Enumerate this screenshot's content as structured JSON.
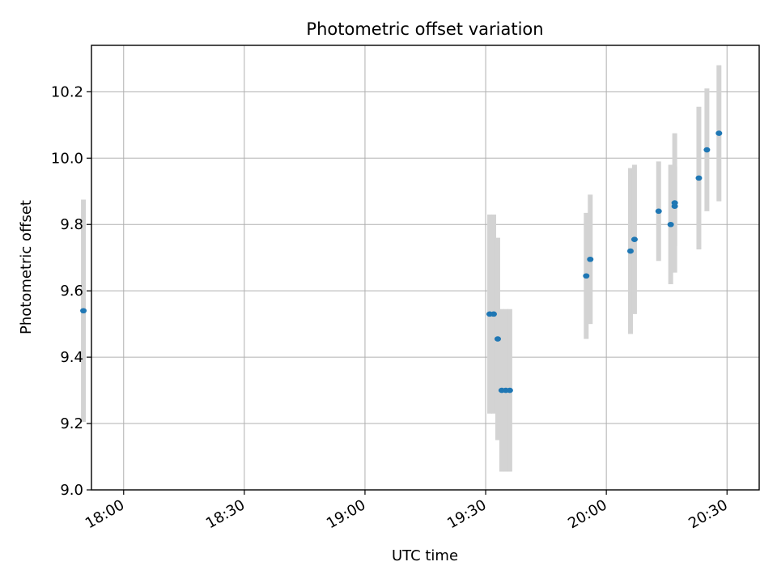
{
  "chart_data": {
    "type": "scatter",
    "title": "Photometric offset variation",
    "xlabel": "UTC time",
    "ylabel": "Photometric offset",
    "xlim": [
      "17:52",
      "20:38"
    ],
    "ylim": [
      9.0,
      10.34
    ],
    "x_ticks": [
      "18:00",
      "18:30",
      "19:00",
      "19:30",
      "20:00",
      "20:30"
    ],
    "y_ticks": [
      "9.0",
      "9.2",
      "9.4",
      "9.6",
      "9.8",
      "10.0",
      "10.2"
    ],
    "grid": true,
    "errorbar_color": "#d3d3d3",
    "point_color": "#1f77b4",
    "series": [
      {
        "points": [
          {
            "x": "17:50",
            "y": 9.54,
            "yerr": 0.335
          },
          {
            "x": "19:31",
            "y": 9.53,
            "yerr": 0.3
          },
          {
            "x": "19:32",
            "y": 9.53,
            "yerr": 0.3
          },
          {
            "x": "19:33",
            "y": 9.455,
            "yerr": 0.305
          },
          {
            "x": "19:34",
            "y": 9.3,
            "yerr": 0.245
          },
          {
            "x": "19:35",
            "y": 9.3,
            "yerr": 0.245
          },
          {
            "x": "19:36",
            "y": 9.3,
            "yerr": 0.245
          },
          {
            "x": "19:55",
            "y": 9.645,
            "yerr": 0.19
          },
          {
            "x": "19:56",
            "y": 9.695,
            "yerr": 0.195
          },
          {
            "x": "20:06",
            "y": 9.72,
            "yerr": 0.25
          },
          {
            "x": "20:07",
            "y": 9.755,
            "yerr": 0.225
          },
          {
            "x": "20:13",
            "y": 9.84,
            "yerr": 0.15
          },
          {
            "x": "20:16",
            "y": 9.8,
            "yerr": 0.18
          },
          {
            "x": "20:17",
            "y": 9.855,
            "yerr": 0.12
          },
          {
            "x": "20:17",
            "y": 9.865,
            "yerr": 0.21
          },
          {
            "x": "20:23",
            "y": 9.94,
            "yerr": 0.215
          },
          {
            "x": "20:25",
            "y": 10.025,
            "yerr": 0.185
          },
          {
            "x": "20:28",
            "y": 10.075,
            "yerr": 0.205
          }
        ]
      }
    ]
  }
}
